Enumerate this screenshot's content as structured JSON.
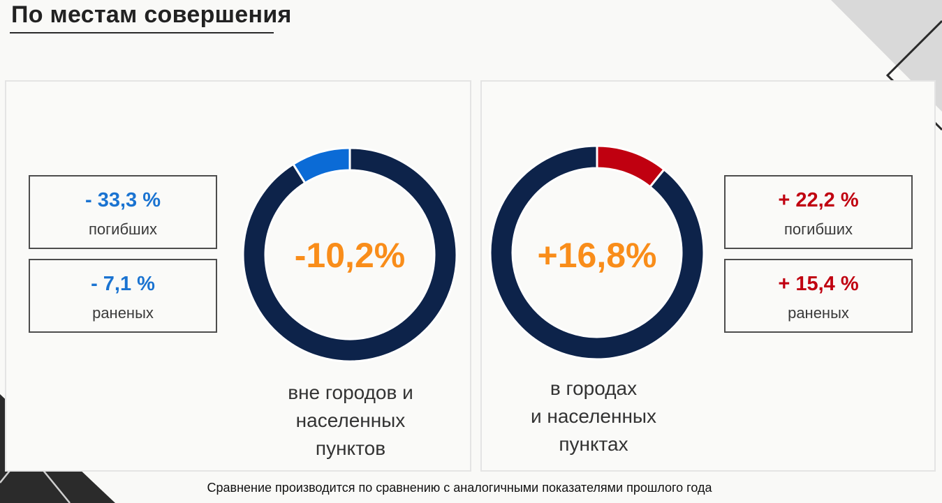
{
  "header": {
    "title": "По местам совершения"
  },
  "chart_data": [
    {
      "type": "pie",
      "name": "",
      "center_label": "-10,2%",
      "caption_lines": [
        "вне городов и",
        "населенных",
        "пунктов"
      ],
      "slices": [
        {
          "label": "",
          "value": 8.9,
          "color": "#0b6bd6"
        },
        {
          "label": "",
          "value": 91.1,
          "color": "#0d234a"
        }
      ],
      "stats": [
        {
          "value": "- 33,3 %",
          "label": "погибших"
        },
        {
          "value": "- 7,1 %",
          "label": "раненых"
        }
      ],
      "stat_color": "#1a73d1"
    },
    {
      "type": "pie",
      "name": "",
      "center_label": "+16,8%",
      "caption_lines": [
        "в городах",
        "и населенных",
        "пунктах"
      ],
      "slices": [
        {
          "label": "",
          "value": 10.8,
          "color": "#c00010"
        },
        {
          "label": "",
          "value": 89.2,
          "color": "#0d234a"
        }
      ],
      "stats": [
        {
          "value": "+ 22,2 %",
          "label": "погибших"
        },
        {
          "value": "+ 15,4 %",
          "label": "раненых"
        }
      ],
      "stat_color": "#c00010"
    }
  ],
  "footnote": "Сравнение производится по сравнению с аналогичными показателями прошлого года",
  "colors": {
    "accent": "#f98d1a",
    "ring": "#0d234a",
    "negative": "#1a73d1",
    "positive": "#c00010"
  }
}
